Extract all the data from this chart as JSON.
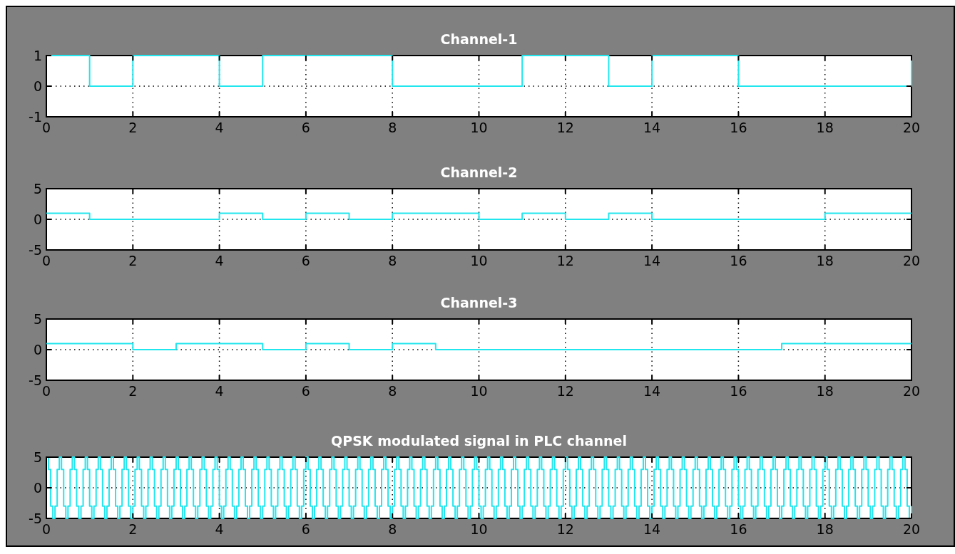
{
  "chart_data": [
    {
      "type": "step",
      "title": "Channel-1",
      "x": [
        0,
        1,
        2,
        3,
        4,
        5,
        6,
        7,
        8,
        9,
        10,
        11,
        12,
        13,
        14,
        15,
        16,
        17,
        18,
        19,
        20
      ],
      "series": [
        {
          "color": "#22e6ee",
          "values": [
            1,
            0,
            1,
            1,
            0,
            1,
            1,
            1,
            0,
            0,
            0,
            1,
            1,
            0,
            1,
            1,
            0,
            0,
            0,
            0,
            1
          ]
        }
      ],
      "xlim": [
        0,
        20
      ],
      "xticks": [
        0,
        2,
        4,
        6,
        8,
        10,
        12,
        14,
        16,
        18,
        20
      ],
      "ylim": [
        -1,
        1
      ],
      "yticks": [
        -1,
        0,
        1
      ],
      "grid": true,
      "line_style": "solid"
    },
    {
      "type": "step",
      "title": "Channel-2",
      "x": [
        0,
        1,
        2,
        3,
        4,
        5,
        6,
        7,
        8,
        9,
        10,
        11,
        12,
        13,
        14,
        15,
        16,
        17,
        18,
        19,
        20
      ],
      "series": [
        {
          "color": "#22e6ee",
          "values": [
            1,
            0,
            0,
            0,
            1,
            0,
            1,
            0,
            1,
            1,
            0,
            1,
            0,
            1,
            0,
            0,
            0,
            0,
            1,
            1,
            1
          ]
        }
      ],
      "xlim": [
        0,
        20
      ],
      "xticks": [
        0,
        2,
        4,
        6,
        8,
        10,
        12,
        14,
        16,
        18,
        20
      ],
      "ylim": [
        -5,
        5
      ],
      "yticks": [
        -5,
        0,
        5
      ],
      "grid": true,
      "line_style": "solid"
    },
    {
      "type": "step",
      "title": "Channel-3",
      "x": [
        0,
        1,
        2,
        3,
        4,
        5,
        6,
        7,
        8,
        9,
        10,
        11,
        12,
        13,
        14,
        15,
        16,
        17,
        18,
        19,
        20
      ],
      "series": [
        {
          "color": "#22e6ee",
          "values": [
            1,
            1,
            0,
            1,
            1,
            0,
            1,
            0,
            1,
            0,
            0,
            0,
            0,
            0,
            0,
            0,
            0,
            1,
            1,
            1,
            1
          ]
        }
      ],
      "xlim": [
        0,
        20
      ],
      "xticks": [
        0,
        2,
        4,
        6,
        8,
        10,
        12,
        14,
        16,
        18,
        20
      ],
      "ylim": [
        -5,
        5
      ],
      "yticks": [
        -5,
        0,
        5
      ],
      "grid": true,
      "line_style": "solid"
    },
    {
      "type": "step",
      "title": "QPSK modulated signal in PLC channel",
      "x": [
        0,
        0.05,
        0.1,
        0.15,
        0.2,
        0.25,
        0.3,
        0.35,
        0.4,
        0.45,
        0.5,
        0.55,
        0.6,
        0.65,
        0.7,
        0.75,
        0.8,
        0.85,
        0.9,
        0.95,
        1,
        1.05,
        1.1,
        1.15,
        1.2,
        1.25,
        1.3,
        1.35,
        1.4,
        1.45,
        1.5,
        1.55,
        1.6,
        1.65,
        1.7,
        1.75,
        1.8,
        1.85,
        1.9,
        1.95,
        2,
        2.05,
        2.1,
        2.15,
        2.2,
        2.25,
        2.3,
        2.35,
        2.4,
        2.45,
        2.5,
        2.55,
        2.6,
        2.65,
        2.7,
        2.75,
        2.8,
        2.85,
        2.9,
        2.95,
        3,
        3.05,
        3.1,
        3.15,
        3.2,
        3.25,
        3.3,
        3.35,
        3.4,
        3.45,
        3.5,
        3.55,
        3.6,
        3.65,
        3.7,
        3.75,
        3.8,
        3.85,
        3.9,
        3.95,
        4,
        4.05,
        4.1,
        4.15,
        4.2,
        4.25,
        4.3,
        4.35,
        4.4,
        4.45,
        4.5,
        4.55,
        4.6,
        4.65,
        4.7,
        4.75,
        4.8,
        4.85,
        4.9,
        4.95,
        5,
        5.05,
        5.1,
        5.15,
        5.2,
        5.25,
        5.3,
        5.35,
        5.4,
        5.45,
        5.5,
        5.55,
        5.6,
        5.65,
        5.7,
        5.75,
        5.8,
        5.85,
        5.9,
        5.95,
        6,
        6.05,
        6.1,
        6.15,
        6.2,
        6.25,
        6.3,
        6.35,
        6.4,
        6.45,
        6.5,
        6.55,
        6.6,
        6.65,
        6.7,
        6.75,
        6.8,
        6.85,
        6.9,
        6.95,
        7,
        7.05,
        7.1,
        7.15,
        7.2,
        7.25,
        7.3,
        7.35,
        7.4,
        7.45,
        7.5,
        7.55,
        7.6,
        7.65,
        7.7,
        7.75,
        7.8,
        7.85,
        7.9,
        7.95,
        8,
        8.05,
        8.1,
        8.15,
        8.2,
        8.25,
        8.3,
        8.35,
        8.4,
        8.45,
        8.5,
        8.55,
        8.6,
        8.65,
        8.7,
        8.75,
        8.8,
        8.85,
        8.9,
        8.95,
        9,
        9.05,
        9.1,
        9.15,
        9.2,
        9.25,
        9.3,
        9.35,
        9.4,
        9.45,
        9.5,
        9.55,
        9.6,
        9.65,
        9.7,
        9.75,
        9.8,
        9.85,
        9.9,
        9.95,
        10,
        10.05,
        10.1,
        10.15,
        10.2,
        10.25,
        10.3,
        10.35,
        10.4,
        10.45,
        10.5,
        10.55,
        10.6,
        10.65,
        10.7,
        10.75,
        10.8,
        10.85,
        10.9,
        10.95,
        11,
        11.05,
        11.1,
        11.15,
        11.2,
        11.25,
        11.3,
        11.35,
        11.4,
        11.45,
        11.5,
        11.55,
        11.6,
        11.65,
        11.7,
        11.75,
        11.8,
        11.85,
        11.9,
        11.95,
        12,
        12.05,
        12.1,
        12.15,
        12.2,
        12.25,
        12.3,
        12.35,
        12.4,
        12.45,
        12.5,
        12.55,
        12.6,
        12.65,
        12.7,
        12.75,
        12.8,
        12.85,
        12.9,
        12.95,
        13,
        13.05,
        13.1,
        13.15,
        13.2,
        13.25,
        13.3,
        13.35,
        13.4,
        13.45,
        13.5,
        13.55,
        13.6,
        13.65,
        13.7,
        13.75,
        13.8,
        13.85,
        13.9,
        13.95,
        14,
        14.05,
        14.1,
        14.15,
        14.2,
        14.25,
        14.3,
        14.35,
        14.4,
        14.45,
        14.5,
        14.55,
        14.6,
        14.65,
        14.7,
        14.75,
        14.8,
        14.85,
        14.9,
        14.95,
        15,
        15.05,
        15.1,
        15.15,
        15.2,
        15.25,
        15.3,
        15.35,
        15.4,
        15.45,
        15.5,
        15.55,
        15.6,
        15.65,
        15.7,
        15.75,
        15.8,
        15.85,
        15.9,
        15.95,
        16,
        16.05,
        16.1,
        16.15,
        16.2,
        16.25,
        16.3,
        16.35,
        16.4,
        16.45,
        16.5,
        16.55,
        16.6,
        16.65,
        16.7,
        16.75,
        16.8,
        16.85,
        16.9,
        16.95,
        17,
        17.05,
        17.1,
        17.15,
        17.2,
        17.25,
        17.3,
        17.35,
        17.4,
        17.45,
        17.5,
        17.55,
        17.6,
        17.65,
        17.7,
        17.75,
        17.8,
        17.85,
        17.9,
        17.95,
        18,
        18.05,
        18.1,
        18.15,
        18.2,
        18.25,
        18.3,
        18.35,
        18.4,
        18.45,
        18.5,
        18.55,
        18.6,
        18.65,
        18.7,
        18.75,
        18.8,
        18.85,
        18.9,
        18.95,
        19,
        19.05,
        19.1,
        19.15,
        19.2,
        19.25,
        19.3,
        19.35,
        19.4,
        19.45,
        19.5,
        19.55,
        19.6,
        19.65,
        19.7,
        19.75,
        19.8,
        19.85,
        19.9,
        19.95,
        20
      ],
      "series": [
        {
          "color": "#22e6ee",
          "values": [
            5,
            3,
            -3,
            -5,
            -3,
            3,
            5,
            3,
            -3,
            -5,
            -3,
            3,
            5,
            3,
            -3,
            -5,
            -3,
            3,
            5,
            3,
            -3,
            -5,
            -3,
            3,
            5,
            3,
            -3,
            -5,
            -3,
            3,
            5,
            3,
            -3,
            -5,
            -3,
            3,
            5,
            3,
            -3,
            -5,
            -3,
            3,
            5,
            3,
            -3,
            -5,
            -3,
            3,
            5,
            3,
            -3,
            -5,
            -3,
            3,
            5,
            3,
            -3,
            -5,
            -3,
            3,
            5,
            3,
            -3,
            -5,
            -3,
            3,
            5,
            3,
            -3,
            -5,
            -3,
            3,
            5,
            3,
            -3,
            -5,
            -3,
            3,
            5,
            3,
            -3,
            -5,
            -3,
            3,
            5,
            3,
            -3,
            -5,
            -3,
            3,
            5,
            3,
            -3,
            -5,
            -3,
            3,
            5,
            3,
            -3,
            -5,
            -3,
            3,
            5,
            3,
            -3,
            -5,
            -3,
            3,
            5,
            3,
            -3,
            -5,
            -3,
            3,
            5,
            3,
            -3,
            -5,
            -3,
            3,
            5,
            3,
            -3,
            -5,
            -3,
            3,
            5,
            3,
            -3,
            -5,
            -3,
            3,
            5,
            3,
            -3,
            -5,
            -3,
            3,
            5,
            3,
            -3,
            -5,
            -3,
            3,
            5,
            3,
            -3,
            -5,
            -3,
            3,
            5,
            3,
            -3,
            -5,
            -3,
            3,
            5,
            3,
            -3,
            -5,
            -3,
            3,
            5,
            3,
            -3,
            -5,
            -3,
            3,
            5,
            3,
            -3,
            -5,
            -3,
            3,
            5,
            3,
            -3,
            -5,
            -3,
            3,
            5,
            3,
            -3,
            -5,
            -3,
            3,
            5,
            3,
            -3,
            -5,
            -3,
            3,
            5,
            3,
            -3,
            -5,
            -3,
            3,
            5,
            3,
            -3,
            -5,
            -3,
            3,
            5,
            3,
            -3,
            -5,
            -3,
            3,
            5,
            3,
            -3,
            -5,
            -3,
            3,
            5,
            3,
            -3,
            -5,
            -3,
            3,
            5,
            3,
            -3,
            -5,
            -3,
            3,
            5,
            3,
            -3,
            -5,
            -3,
            3,
            5,
            3,
            -3,
            -5,
            -3,
            3,
            5,
            3,
            -3,
            -5,
            -3,
            3,
            5,
            3,
            -3,
            -5,
            -3,
            3,
            5,
            3,
            -3,
            -5,
            -3,
            3,
            5,
            3,
            -3,
            -5,
            -3,
            3,
            5,
            3,
            -3,
            -5,
            -3,
            3,
            5,
            3,
            -3,
            -5,
            -3,
            3,
            5,
            3,
            -3,
            -5,
            -3,
            3,
            5,
            3,
            -3,
            -5,
            -3,
            3,
            5,
            3,
            -3,
            -5,
            -3,
            3,
            5,
            3,
            -3,
            -5,
            -3,
            3,
            5,
            3,
            -3,
            -5,
            -3,
            3,
            5,
            3,
            -3,
            -5,
            -3,
            3,
            5,
            3,
            -3,
            -5,
            -3,
            3,
            5,
            3,
            -3,
            -5,
            -3,
            3,
            5,
            3,
            -3,
            -5,
            -3,
            3,
            5,
            3,
            -3,
            -5,
            -3,
            3,
            5,
            3,
            -3,
            -5,
            -3,
            3,
            5,
            3,
            -3,
            -5,
            -3,
            3,
            5,
            3,
            -3,
            -5,
            -3,
            3,
            5,
            3,
            -3,
            -5,
            -3,
            3,
            5,
            3,
            -3,
            -5,
            -3,
            3,
            5,
            3,
            -3,
            -5,
            -3,
            3,
            5,
            3,
            -3,
            -5,
            -3,
            3,
            5,
            3,
            -3,
            -5,
            -3,
            3,
            5,
            3,
            -3,
            -5,
            -3,
            3,
            5,
            3,
            -3,
            -5,
            -3,
            3,
            5,
            3,
            -3,
            -5,
            -3
          ]
        }
      ],
      "xlim": [
        0,
        20
      ],
      "xticks": [
        0,
        2,
        4,
        6,
        8,
        10,
        12,
        14,
        16,
        18,
        20
      ],
      "ylim": [
        -5,
        5
      ],
      "yticks": [
        -5,
        0,
        5
      ],
      "grid": true,
      "line_style": "solid"
    }
  ]
}
